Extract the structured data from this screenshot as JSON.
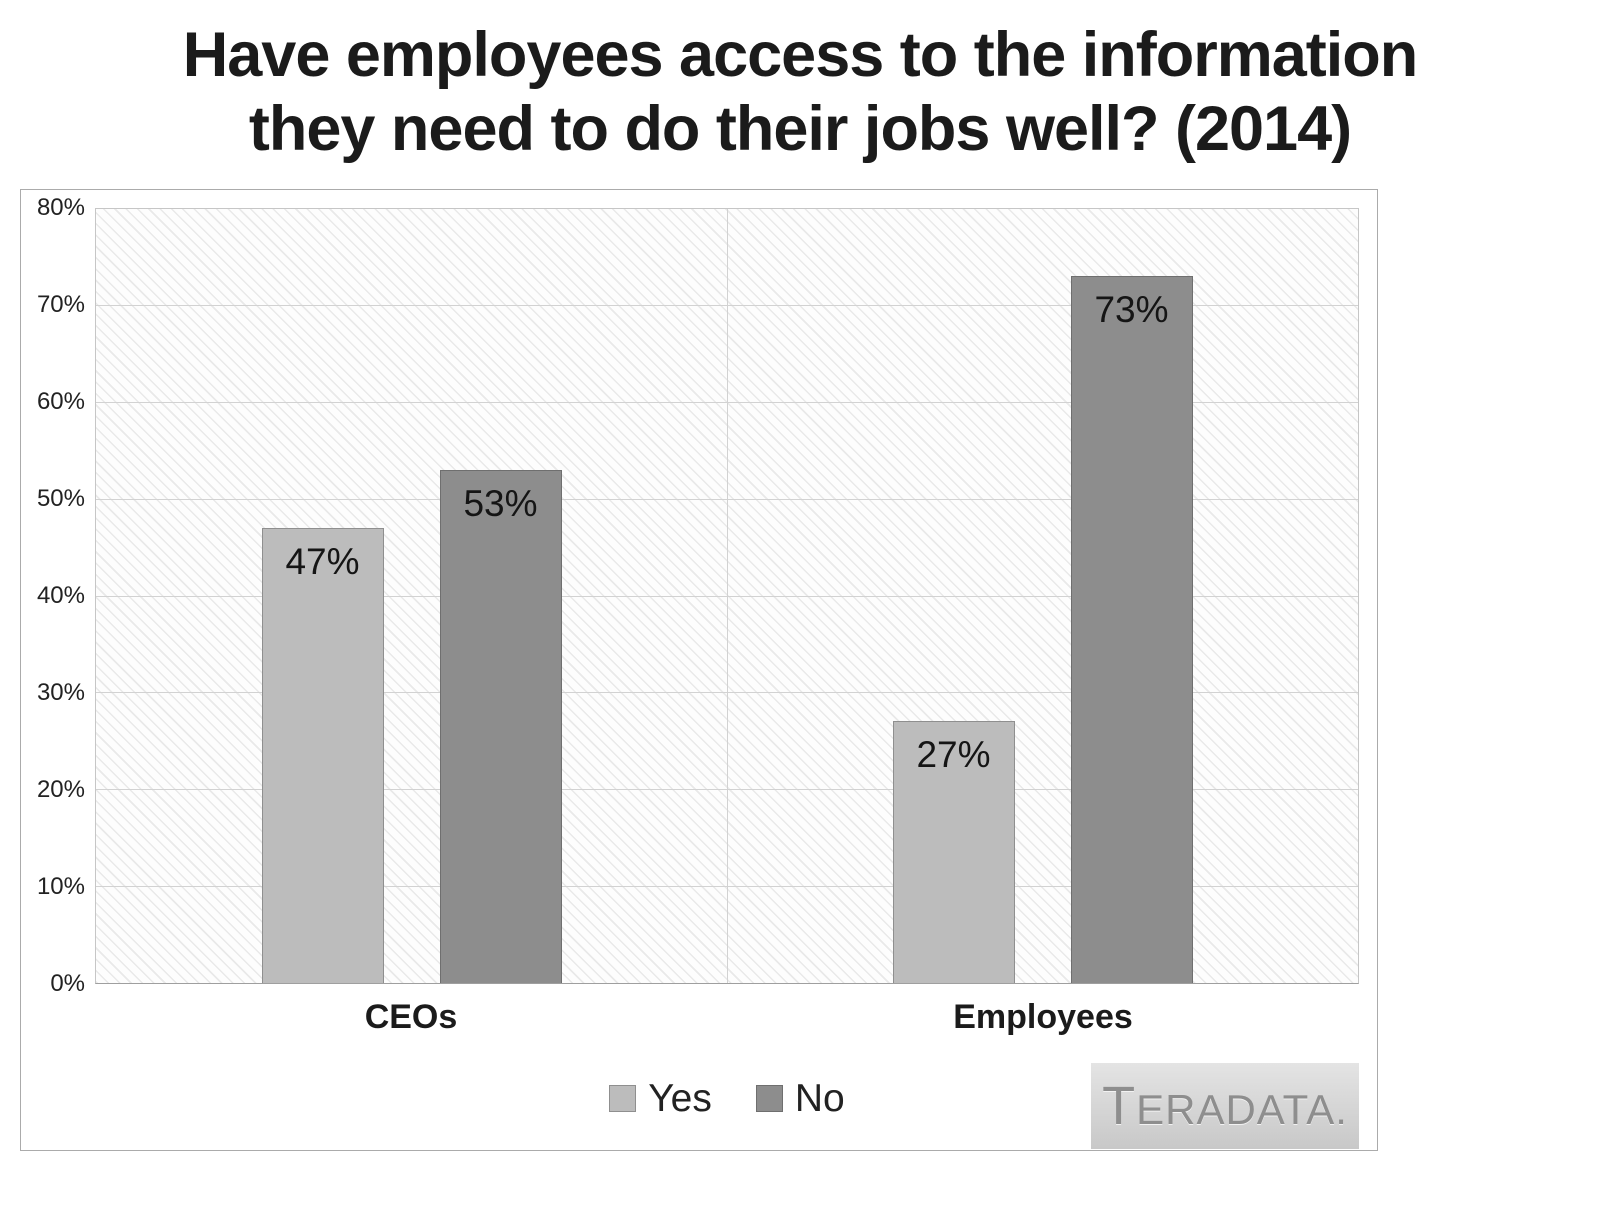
{
  "title": {
    "line1": "Have employees access to the information",
    "line2": "they need to do their jobs well? (2014)"
  },
  "chart_data": {
    "type": "bar",
    "categories": [
      "CEOs",
      "Employees"
    ],
    "series": [
      {
        "name": "Yes",
        "values": [
          47,
          27
        ],
        "color": "#bcbcbc",
        "border_color": "#8f8f8f"
      },
      {
        "name": "No",
        "values": [
          53,
          73
        ],
        "color": "#8d8d8d",
        "border_color": "#6f6f6f"
      }
    ],
    "value_labels": [
      [
        "47%",
        "27%"
      ],
      [
        "53%",
        "73%"
      ]
    ],
    "y_ticks": [
      "80%",
      "70%",
      "60%",
      "50%",
      "40%",
      "30%",
      "20%",
      "10%",
      "0%"
    ],
    "ylim": [
      0,
      80
    ],
    "grid": true,
    "legend_position": "bottom"
  },
  "brand": {
    "logo_text": "TERADATA."
  }
}
